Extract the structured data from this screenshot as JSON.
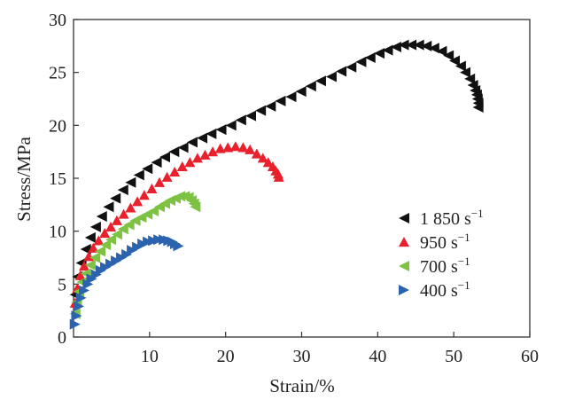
{
  "chart_data": {
    "type": "scatter",
    "xlabel": "Strain/%",
    "ylabel": "Stress/MPa",
    "xlim": [
      0,
      60
    ],
    "ylim": [
      0,
      30
    ],
    "xticks": [
      10,
      20,
      30,
      40,
      50,
      60
    ],
    "yticks": [
      0,
      5,
      10,
      15,
      20,
      25,
      30
    ],
    "grid": false,
    "legend_position": "right",
    "series": [
      {
        "name": "1 850 s",
        "name_superscript": "−1",
        "marker": "triangle-left",
        "color": "#111111",
        "x": [
          0.2,
          0.5,
          1.0,
          1.6,
          2.2,
          2.9,
          3.7,
          4.6,
          5.5,
          6.5,
          7.5,
          8.6,
          9.7,
          10.9,
          12.0,
          13.2,
          14.4,
          15.6,
          16.9,
          18.1,
          19.4,
          20.7,
          22.0,
          23.3,
          24.6,
          25.9,
          27.2,
          28.6,
          29.9,
          31.2,
          32.5,
          33.9,
          35.2,
          36.5,
          37.8,
          39.0,
          40.2,
          41.3,
          42.4,
          43.4,
          44.4,
          45.4,
          46.4,
          47.4,
          48.4,
          49.3,
          50.1,
          50.9,
          51.5,
          52.1,
          52.5,
          52.8,
          53.0,
          53.1,
          53.2,
          53.2
        ],
        "y": [
          4.0,
          5.7,
          7.0,
          8.3,
          9.4,
          10.4,
          11.4,
          12.3,
          13.1,
          13.9,
          14.6,
          15.3,
          15.9,
          16.5,
          17.0,
          17.5,
          17.9,
          18.4,
          18.8,
          19.2,
          19.6,
          20.0,
          20.5,
          20.9,
          21.4,
          21.8,
          22.3,
          22.7,
          23.2,
          23.7,
          24.2,
          24.6,
          25.1,
          25.5,
          26.0,
          26.4,
          26.8,
          27.1,
          27.4,
          27.6,
          27.6,
          27.6,
          27.5,
          27.3,
          27.0,
          26.6,
          26.1,
          25.6,
          25.0,
          24.4,
          23.8,
          23.3,
          22.9,
          22.5,
          22.1,
          21.7
        ]
      },
      {
        "name": "950 s",
        "name_superscript": "−1",
        "marker": "triangle-up",
        "color": "#e8212d",
        "x": [
          0.2,
          0.5,
          0.9,
          1.4,
          2.0,
          2.6,
          3.3,
          4.1,
          4.9,
          5.7,
          6.6,
          7.5,
          8.4,
          9.3,
          10.3,
          11.3,
          12.3,
          13.3,
          14.3,
          15.3,
          16.3,
          17.3,
          18.3,
          19.3,
          20.3,
          21.3,
          22.3,
          23.2,
          24.1,
          24.9,
          25.6,
          26.2,
          26.6,
          26.9,
          27.0
        ],
        "y": [
          3.2,
          4.6,
          5.8,
          6.7,
          7.6,
          8.4,
          9.1,
          9.8,
          10.4,
          11.0,
          11.6,
          12.2,
          12.8,
          13.4,
          14.0,
          14.6,
          15.1,
          15.6,
          16.1,
          16.5,
          16.9,
          17.2,
          17.5,
          17.8,
          17.9,
          18.0,
          17.9,
          17.7,
          17.3,
          16.9,
          16.5,
          16.1,
          15.7,
          15.4,
          15.1
        ]
      },
      {
        "name": "700 s",
        "name_superscript": "−1",
        "marker": "triangle-left",
        "color": "#7dc243",
        "x": [
          0.2,
          0.4,
          0.7,
          1.1,
          1.6,
          2.2,
          2.8,
          3.5,
          4.2,
          4.9,
          5.7,
          6.5,
          7.3,
          8.1,
          8.9,
          9.7,
          10.5,
          11.3,
          12.0,
          12.7,
          13.4,
          14.0,
          14.6,
          15.1,
          15.5,
          15.8,
          16.0
        ],
        "y": [
          2.2,
          3.3,
          4.3,
          5.2,
          6.0,
          6.8,
          7.5,
          8.1,
          8.7,
          9.2,
          9.7,
          10.2,
          10.6,
          11.0,
          11.3,
          11.6,
          11.9,
          12.3,
          12.6,
          12.9,
          13.1,
          13.3,
          13.3,
          13.2,
          12.9,
          12.6,
          12.3
        ]
      },
      {
        "name": "400 s",
        "name_superscript": "−1",
        "marker": "triangle-right",
        "color": "#2b63ae",
        "x": [
          0.2,
          0.4,
          0.7,
          1.0,
          1.4,
          1.9,
          2.4,
          3.0,
          3.6,
          4.2,
          4.9,
          5.6,
          6.3,
          7.0,
          7.7,
          8.4,
          9.1,
          9.8,
          10.5,
          11.2,
          11.9,
          12.5,
          13.0,
          13.4,
          13.8
        ],
        "y": [
          1.2,
          2.0,
          2.9,
          3.7,
          4.4,
          5.0,
          5.5,
          5.9,
          6.3,
          6.6,
          6.9,
          7.2,
          7.5,
          7.8,
          8.2,
          8.5,
          8.8,
          9.0,
          9.1,
          9.2,
          9.2,
          9.1,
          9.0,
          8.8,
          8.6
        ]
      }
    ]
  }
}
